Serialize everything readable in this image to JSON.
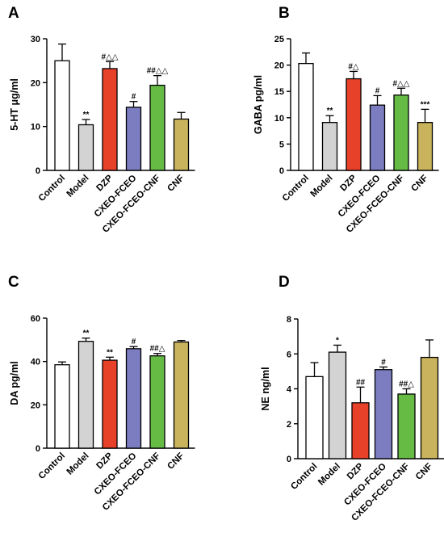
{
  "colors": {
    "Control": "#ffffff",
    "Model": "#d3d3d3",
    "DZP": "#e8412a",
    "CXEO-FCEO": "#7b7dc0",
    "CXEO-FCEO-CNF": "#66bb45",
    "CNF": "#c9b35c"
  },
  "chart_data": [
    {
      "panel": "A",
      "type": "bar",
      "ylabel": "5-HT μg/ml",
      "ylim": [
        0,
        30
      ],
      "yticks": [
        0,
        10,
        20,
        30
      ],
      "categories": [
        "Control",
        "Model",
        "DZP",
        "CXEO-FCEO",
        "CXEO-FCEO-CNF",
        "CNF"
      ],
      "values": [
        25.0,
        10.4,
        23.2,
        14.4,
        19.4,
        11.7
      ],
      "errors": [
        3.8,
        1.2,
        1.6,
        1.3,
        2.2,
        1.5
      ],
      "annotations": [
        "",
        "**",
        "#△△",
        "#",
        "##△△",
        ""
      ]
    },
    {
      "panel": "B",
      "type": "bar",
      "ylabel": "GABA pg/ml",
      "ylim": [
        0,
        25
      ],
      "yticks": [
        0,
        5,
        10,
        15,
        20,
        25
      ],
      "categories": [
        "Control",
        "Model",
        "DZP",
        "CXEO-FCEO",
        "CXEO-FCEO-CNF",
        "CNF"
      ],
      "values": [
        20.3,
        9.1,
        17.4,
        12.4,
        14.3,
        9.1
      ],
      "errors": [
        2.0,
        1.3,
        1.4,
        1.8,
        1.3,
        2.5
      ],
      "annotations": [
        "",
        "**",
        "#△",
        "#",
        "#△△",
        "***"
      ]
    },
    {
      "panel": "C",
      "type": "bar",
      "ylabel": "DA pg/ml",
      "ylim": [
        0,
        60
      ],
      "yticks": [
        0,
        20,
        40,
        60
      ],
      "categories": [
        "Control",
        "Model",
        "DZP",
        "CXEO-FCEO",
        "CXEO-FCEO-CNF",
        "CNF"
      ],
      "values": [
        38.5,
        49.3,
        40.6,
        45.9,
        42.6,
        49.0
      ],
      "errors": [
        1.3,
        1.5,
        1.4,
        1.0,
        1.1,
        0.7
      ],
      "annotations": [
        "",
        "**",
        "**",
        "#",
        "##△",
        ""
      ]
    },
    {
      "panel": "D",
      "type": "bar",
      "ylabel": "NE ng/ml",
      "ylim": [
        0,
        8
      ],
      "yticks": [
        0,
        2,
        4,
        6,
        8
      ],
      "categories": [
        "Control",
        "Model",
        "DZP",
        "CXEO-FCEO",
        "CXEO-FCEO-CNF",
        "CNF"
      ],
      "values": [
        4.7,
        6.1,
        3.2,
        5.1,
        3.7,
        5.8
      ],
      "errors": [
        0.8,
        0.4,
        0.9,
        0.15,
        0.3,
        1.0
      ],
      "annotations": [
        "",
        "*",
        "##",
        "#",
        "##△",
        ""
      ]
    }
  ]
}
